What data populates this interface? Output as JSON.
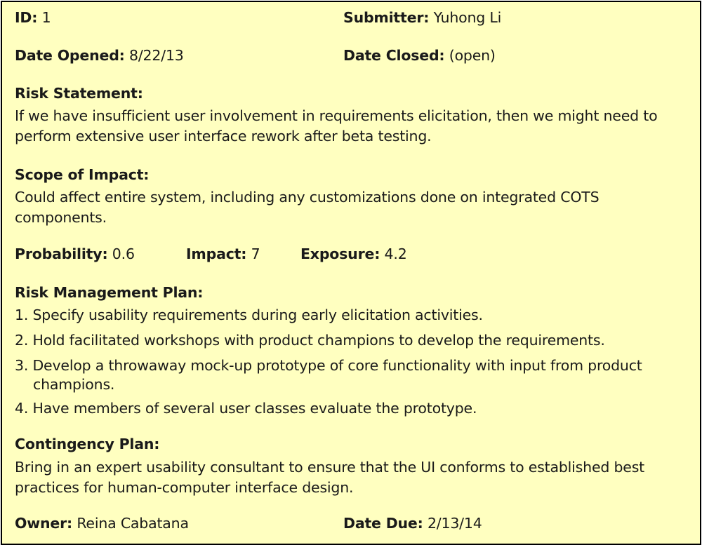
{
  "id": {
    "label": "ID:",
    "value": "1"
  },
  "submitter": {
    "label": "Submitter:",
    "value": "Yuhong Li"
  },
  "date_opened": {
    "label": "Date Opened:",
    "value": "8/22/13"
  },
  "date_closed": {
    "label": "Date Closed:",
    "value": "(open)"
  },
  "risk_statement": {
    "label": "Risk Statement:",
    "text": "If we have insufficient user involvement in requirements elicitation, then we might need to perform extensive user interface rework after beta testing."
  },
  "scope_of_impact": {
    "label": "Scope of Impact:",
    "text": "Could affect entire system, including any customizations done on integrated COTS components."
  },
  "probability": {
    "label": "Probability:",
    "value": "0.6"
  },
  "impact": {
    "label": "Impact:",
    "value": "7"
  },
  "exposure": {
    "label": "Exposure:",
    "value": "4.2"
  },
  "risk_management_plan": {
    "label": "Risk Management Plan:",
    "items": [
      "1. Specify usability requirements during early elicitation activities.",
      "2. Hold facilitated workshops with product champions to develop the requirements.",
      "3. Develop a throwaway mock-up prototype of core functionality with input from product champions.",
      "4. Have members of several user classes evaluate the prototype."
    ]
  },
  "contingency_plan": {
    "label": "Contingency Plan:",
    "text": "Bring in an expert usability consultant to ensure that the UI conforms to established best practices for human-computer interface design."
  },
  "owner": {
    "label": "Owner:",
    "value": "Reina Cabatana"
  },
  "date_due": {
    "label": "Date Due:",
    "value": "2/13/14"
  },
  "colors": {
    "background": "#ffffc0",
    "border": "#000000",
    "text": "#1a1a1a"
  }
}
